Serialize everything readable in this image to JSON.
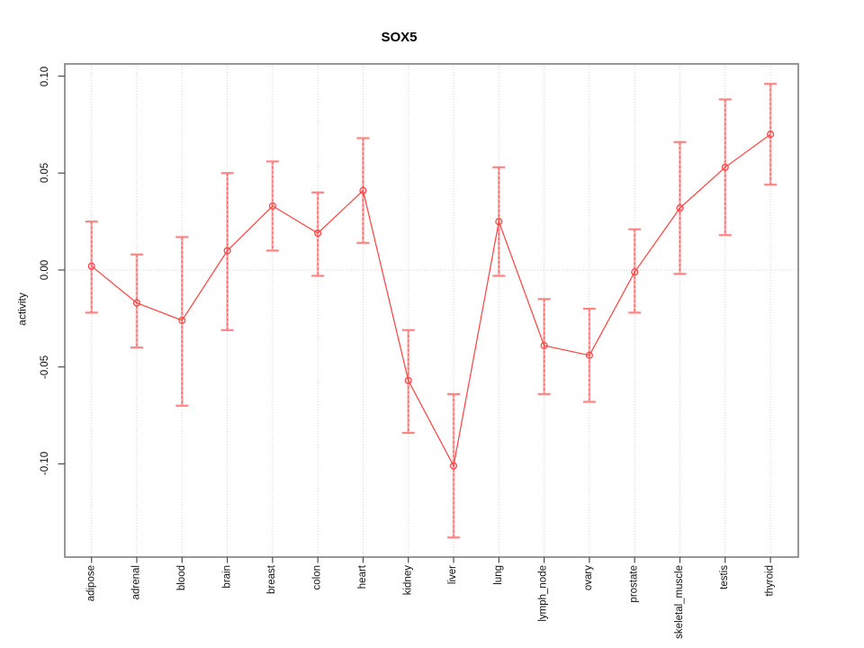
{
  "chart_data": {
    "type": "line",
    "title": "SOX5",
    "xlabel": "",
    "ylabel": "activity",
    "legend_position": "none",
    "point_style": "open-circle",
    "error_bars": true,
    "categories": [
      "adipose",
      "adrenal",
      "blood",
      "brain",
      "breast",
      "colon",
      "heart",
      "kidney",
      "liver",
      "lung",
      "lymph_node",
      "ovary",
      "prostate",
      "skeletal_muscle",
      "testis",
      "thyroid"
    ],
    "series": [
      {
        "name": "activity",
        "values": [
          0.002,
          -0.017,
          -0.026,
          0.01,
          0.033,
          0.019,
          0.041,
          -0.057,
          -0.101,
          0.025,
          -0.039,
          -0.044,
          -0.001,
          0.032,
          0.053,
          0.07
        ],
        "error_low": [
          -0.022,
          -0.04,
          -0.07,
          -0.031,
          0.01,
          -0.003,
          0.014,
          -0.084,
          -0.138,
          -0.003,
          -0.064,
          -0.068,
          -0.022,
          -0.002,
          0.018,
          0.044
        ],
        "error_high": [
          0.025,
          0.008,
          0.017,
          0.05,
          0.056,
          0.04,
          0.068,
          -0.031,
          -0.064,
          0.053,
          -0.015,
          -0.02,
          0.021,
          0.066,
          0.088,
          0.096
        ]
      }
    ],
    "axis": {
      "ytick_labels": [
        "0.10",
        "0.05",
        "0.00",
        "-0.05",
        "-0.10"
      ],
      "ytick_values": [
        0.1,
        0.05,
        0.0,
        -0.05,
        -0.1
      ],
      "ylim": [
        -0.148,
        0.106
      ],
      "grid_vertical": "dotted line at every category",
      "grid_horizontal": "dotted line at zero only"
    },
    "colors": {
      "line": "#ff4545",
      "point": "#ff4545",
      "error_bar_fill": "#ffb0b0",
      "error_bar_dash": "#ff5c5c",
      "error_bar_cap": "#ff8484",
      "grid": "#d6d6d6",
      "box": "#858585",
      "tick": "#4d4d4d",
      "text": "#111111"
    }
  }
}
